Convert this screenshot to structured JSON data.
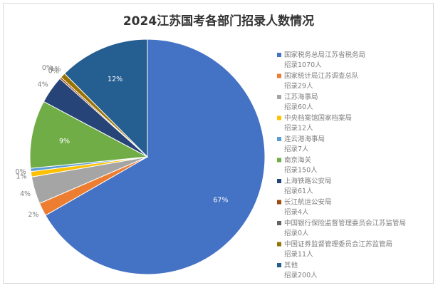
{
  "chart_data": {
    "type": "pie",
    "title": "2024江苏国考各部门招录人数情况",
    "legend_position": "right",
    "slices": [
      {
        "name": "国家税务总局江苏省税务局",
        "sub": "招录1070人",
        "value": 1070,
        "label": "67%",
        "color": "#4472c4"
      },
      {
        "name": "国家统计局江苏调查总队",
        "sub": "招录29人",
        "value": 29,
        "label": "2%",
        "color": "#ed7d31"
      },
      {
        "name": "江苏海事局",
        "sub": "招录60人",
        "value": 60,
        "label": "4%",
        "color": "#a5a5a5"
      },
      {
        "name": "中央档案馆国家档案局",
        "sub": "招录12人",
        "value": 12,
        "label": "1%",
        "color": "#ffc000"
      },
      {
        "name": "连云港海事局",
        "sub": "招录7人",
        "value": 7,
        "label": "0%",
        "color": "#5b9bd5"
      },
      {
        "name": "南京海关",
        "sub": "招录150人",
        "value": 150,
        "label": "9%",
        "color": "#70ad47"
      },
      {
        "name": "上海铁路公安局",
        "sub": "招录61人",
        "value": 61,
        "label": "4%",
        "color": "#264478"
      },
      {
        "name": "长江航运公安局",
        "sub": "招录4人",
        "value": 4,
        "label": "0%",
        "color": "#9e480e"
      },
      {
        "name": "中国银行保险监督管理委员会江苏监管局",
        "sub": "招录0人",
        "value": 0,
        "label": "0%",
        "color": "#636363"
      },
      {
        "name": "中国证券监督管理委员会江苏监管局",
        "sub": "招录11人",
        "value": 11,
        "label": "1%",
        "color": "#997300"
      },
      {
        "name": "其他",
        "sub": "招录200人",
        "value": 200,
        "label": "12%",
        "color": "#255e91"
      }
    ]
  }
}
